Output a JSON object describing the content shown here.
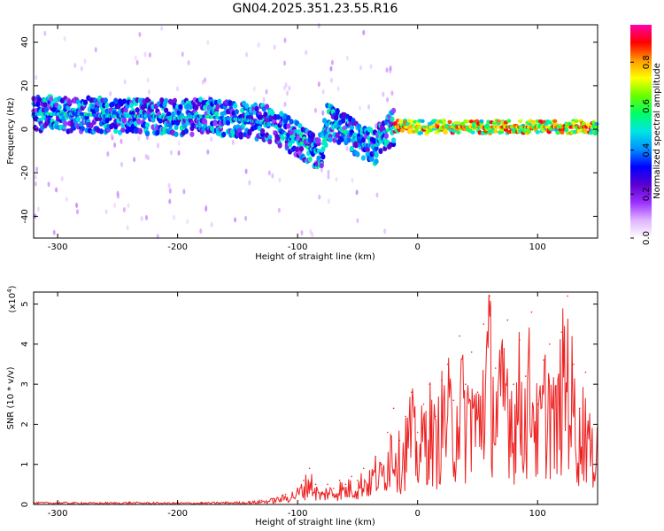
{
  "title": "GN04.2025.351.23.55.R16",
  "chart_data": [
    {
      "type": "heatmap",
      "title": "GN04.2025.351.23.55.R16",
      "xlabel": "Height of straight line (km)",
      "ylabel": "Frequency (Hz)",
      "xlim": [
        -320,
        150
      ],
      "ylim": [
        -50,
        48
      ],
      "x_ticks": [
        -300,
        -200,
        -100,
        0,
        100
      ],
      "y_ticks": [
        -40,
        -20,
        0,
        20,
        40
      ],
      "colorbar": {
        "label": "Normalized spectral amplitude",
        "range": [
          0,
          0.97
        ],
        "ticks": [
          0.0,
          0.2,
          0.4,
          0.6,
          0.8
        ],
        "colors": [
          "#ffffff",
          "#e0b4ff",
          "#9b30ff",
          "#5a00d0",
          "#0000ff",
          "#0090ff",
          "#00e5e5",
          "#00ff66",
          "#66ff00",
          "#ffff00",
          "#ff9900",
          "#ff0000",
          "#ff00aa"
        ]
      },
      "dominant_frequency_band": [
        {
          "x": -320,
          "y": 7
        },
        {
          "x": -300,
          "y": 7
        },
        {
          "x": -280,
          "y": 7
        },
        {
          "x": -260,
          "y": 6
        },
        {
          "x": -240,
          "y": 6
        },
        {
          "x": -220,
          "y": 6
        },
        {
          "x": -200,
          "y": 5
        },
        {
          "x": -180,
          "y": 6
        },
        {
          "x": -160,
          "y": 5
        },
        {
          "x": -140,
          "y": 4
        },
        {
          "x": -120,
          "y": 2
        },
        {
          "x": -110,
          "y": -2
        },
        {
          "x": -100,
          "y": -5
        },
        {
          "x": -90,
          "y": -9
        },
        {
          "x": -80,
          "y": -10
        },
        {
          "x": -75,
          "y": 4
        },
        {
          "x": -65,
          "y": 0
        },
        {
          "x": -55,
          "y": -3
        },
        {
          "x": -45,
          "y": -7
        },
        {
          "x": -35,
          "y": -8
        },
        {
          "x": -30,
          "y": -2
        },
        {
          "x": -20,
          "y": 1
        },
        {
          "x": 0,
          "y": 1
        },
        {
          "x": 20,
          "y": 1
        },
        {
          "x": 40,
          "y": 1
        },
        {
          "x": 60,
          "y": 1
        },
        {
          "x": 80,
          "y": 1
        },
        {
          "x": 100,
          "y": 1
        },
        {
          "x": 120,
          "y": 1
        },
        {
          "x": 150,
          "y": 1
        }
      ]
    },
    {
      "type": "line",
      "xlabel": "Height of straight line (km)",
      "ylabel": "SNR (10 * v/v)",
      "y_multiplier_label": "(x10",
      "y_multiplier_exponent": "4",
      "y_multiplier_close": ")",
      "xlim": [
        -320,
        150
      ],
      "ylim": [
        0,
        5.3
      ],
      "x_ticks": [
        -300,
        -200,
        -100,
        0,
        100
      ],
      "y_ticks": [
        0,
        1,
        2,
        3,
        4,
        5
      ],
      "color": "#ee2222",
      "series": [
        {
          "x": [
            -320,
            -300,
            -280,
            -260,
            -240,
            -220,
            -200,
            -180,
            -160,
            -140,
            -130,
            -120,
            -110,
            -100,
            -95,
            -90,
            -85,
            -80,
            -75,
            -70,
            -65,
            -60,
            -55,
            -50,
            -45,
            -40,
            -35,
            -30,
            -25,
            -20,
            -15,
            -10,
            -5,
            0,
            5,
            10,
            15,
            20,
            25,
            30,
            35,
            40,
            45,
            50,
            55,
            60,
            65,
            70,
            75,
            80,
            85,
            90,
            95,
            100,
            105,
            110,
            115,
            120,
            125,
            130,
            135,
            140,
            145,
            150
          ],
          "y": [
            0.05,
            0.06,
            0.05,
            0.05,
            0.06,
            0.05,
            0.05,
            0.05,
            0.06,
            0.07,
            0.1,
            0.15,
            0.25,
            0.4,
            0.6,
            0.9,
            0.5,
            0.3,
            0.5,
            0.4,
            0.6,
            0.5,
            0.7,
            0.6,
            0.9,
            0.8,
            1.2,
            1.0,
            1.8,
            2.4,
            1.6,
            2.2,
            2.8,
            1.8,
            2.5,
            3.0,
            2.2,
            3.1,
            3.5,
            2.6,
            4.2,
            3.0,
            3.8,
            2.8,
            4.5,
            5.2,
            3.4,
            3.8,
            4.6,
            3.0,
            4.1,
            3.2,
            4.8,
            2.5,
            3.6,
            4.0,
            2.8,
            4.3,
            5.2,
            3.5,
            2.4,
            3.3,
            1.6,
            3.0
          ]
        }
      ]
    }
  ]
}
